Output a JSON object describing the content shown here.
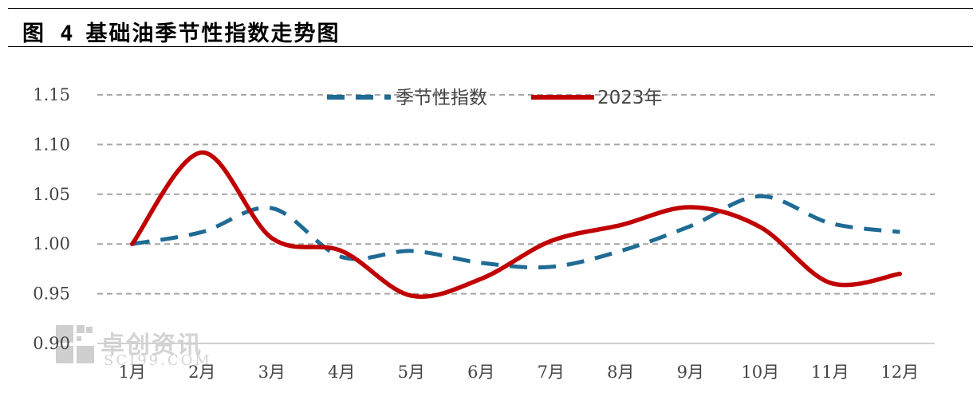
{
  "figure": {
    "label": "图 4",
    "title": "基础油季节性指数走势图"
  },
  "watermark": {
    "brand": "卓创资讯",
    "url": "SCI99.COM"
  },
  "chart_data": {
    "type": "line",
    "title": "基础油季节性指数走势图",
    "categories": [
      "1月",
      "2月",
      "3月",
      "4月",
      "5月",
      "6月",
      "7月",
      "8月",
      "9月",
      "10月",
      "11月",
      "12月"
    ],
    "y_ticks": [
      "1.15",
      "1.10",
      "1.05",
      "1.00",
      "0.95",
      "0.90"
    ],
    "ylim": [
      0.9,
      1.15
    ],
    "grid": true,
    "legend_position": "top",
    "series": [
      {
        "name": "季节性指数",
        "style": "dashed",
        "color": "#1f6b94",
        "values": [
          1.0,
          1.012,
          1.036,
          0.987,
          0.993,
          0.981,
          0.977,
          0.993,
          1.018,
          1.048,
          1.021,
          1.012
        ]
      },
      {
        "name": "2023年",
        "style": "solid",
        "color": "#c00000",
        "values": [
          1.0,
          1.092,
          1.006,
          0.993,
          0.948,
          0.965,
          1.003,
          1.019,
          1.037,
          1.017,
          0.961,
          0.97
        ]
      }
    ]
  }
}
